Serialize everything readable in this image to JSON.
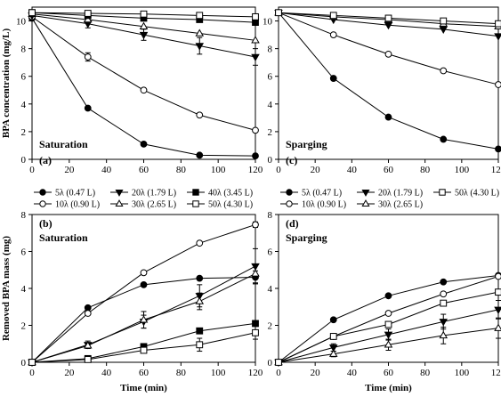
{
  "chart_data": [
    {
      "id": "a",
      "type": "line",
      "panel_label": "(a)",
      "annotation": "Saturation",
      "ylabel": "BPA concentration (mg/L)",
      "xlabel": "",
      "xlim": [
        0,
        120
      ],
      "ylim": [
        0,
        11
      ],
      "xticks": [
        0,
        20,
        40,
        60,
        80,
        100,
        120
      ],
      "yticks": [
        0,
        2,
        4,
        6,
        8,
        10
      ],
      "x": [
        0,
        30,
        60,
        90,
        120
      ],
      "series": [
        {
          "name": "5λ (0.47 L)",
          "marker": "filled-circle",
          "values": [
            10.2,
            3.7,
            1.1,
            0.3,
            0.25
          ],
          "err": [
            0,
            0,
            0,
            0,
            0
          ]
        },
        {
          "name": "10λ (0.90 L)",
          "marker": "open-circle",
          "values": [
            10.3,
            7.4,
            5.0,
            3.2,
            2.1
          ],
          "err": [
            0,
            0.3,
            0,
            0,
            0
          ]
        },
        {
          "name": "20λ (1.79 L)",
          "marker": "filled-triangle-down",
          "values": [
            10.4,
            9.8,
            9.0,
            8.2,
            7.4
          ],
          "err": [
            0,
            0.3,
            0.4,
            0.6,
            0.6
          ]
        },
        {
          "name": "30λ (2.65 L)",
          "marker": "open-triangle-up",
          "values": [
            10.5,
            10.1,
            9.6,
            9.1,
            8.6
          ],
          "err": [
            0,
            0,
            0,
            0,
            0
          ]
        },
        {
          "name": "40λ (3.45 L)",
          "marker": "filled-square",
          "values": [
            10.6,
            10.4,
            10.2,
            10.1,
            9.9
          ],
          "err": [
            0,
            0,
            0,
            0,
            0
          ]
        },
        {
          "name": "50λ (4.30 L)",
          "marker": "open-square",
          "values": [
            10.6,
            10.55,
            10.5,
            10.4,
            10.3
          ],
          "err": [
            0,
            0,
            0,
            0,
            0
          ]
        }
      ]
    },
    {
      "id": "c",
      "type": "line",
      "panel_label": "(c)",
      "annotation": "Sparging",
      "ylabel": "",
      "xlabel": "",
      "xlim": [
        0,
        120
      ],
      "ylim": [
        0,
        11
      ],
      "xticks": [
        0,
        20,
        40,
        60,
        80,
        100,
        120
      ],
      "yticks": [
        0,
        2,
        4,
        6,
        8,
        10
      ],
      "x": [
        0,
        30,
        60,
        90,
        120
      ],
      "series": [
        {
          "name": "5λ (0.47 L)",
          "marker": "filled-circle",
          "values": [
            10.6,
            5.85,
            3.05,
            1.45,
            0.75
          ],
          "err": [
            0,
            0,
            0,
            0,
            0
          ]
        },
        {
          "name": "10λ (0.90 L)",
          "marker": "open-circle",
          "values": [
            10.6,
            9.0,
            7.6,
            6.4,
            5.4
          ],
          "err": [
            0,
            0,
            0,
            0,
            0
          ]
        },
        {
          "name": "20λ (1.79 L)",
          "marker": "filled-triangle-down",
          "values": [
            10.6,
            10.1,
            9.7,
            9.4,
            8.9
          ],
          "err": [
            0,
            0,
            0,
            0,
            0
          ]
        },
        {
          "name": "30λ (2.65 L)",
          "marker": "open-triangle-up",
          "values": [
            10.6,
            10.3,
            10.1,
            9.8,
            9.6
          ],
          "err": [
            0,
            0,
            0,
            0,
            0
          ]
        },
        {
          "name": "50λ (4.30 L)",
          "marker": "open-square",
          "values": [
            10.6,
            10.4,
            10.2,
            10.0,
            9.8
          ],
          "err": [
            0,
            0,
            0,
            0,
            0
          ]
        }
      ]
    },
    {
      "id": "b",
      "type": "line",
      "panel_label": "(b)",
      "annotation": "Saturation",
      "ylabel": "Removed BPA mass (mg)",
      "xlabel": "Time (min)",
      "xlim": [
        0,
        120
      ],
      "ylim": [
        0,
        8
      ],
      "xticks": [
        0,
        20,
        40,
        60,
        80,
        100,
        120
      ],
      "yticks": [
        0,
        2,
        4,
        6,
        8
      ],
      "x": [
        0,
        30,
        60,
        90,
        120
      ],
      "series": [
        {
          "name": "5λ (0.47 L)",
          "marker": "filled-circle",
          "values": [
            0,
            2.95,
            4.2,
            4.55,
            4.6
          ],
          "err": [
            0,
            0,
            0,
            0,
            0.35
          ]
        },
        {
          "name": "10λ (0.90 L)",
          "marker": "open-circle",
          "values": [
            0,
            2.65,
            4.85,
            6.45,
            7.45
          ],
          "err": [
            0,
            0,
            0,
            0,
            0.15
          ]
        },
        {
          "name": "20λ (1.79 L)",
          "marker": "filled-triangle-down",
          "values": [
            0,
            0.95,
            2.2,
            3.6,
            5.2
          ],
          "err": [
            0,
            0.2,
            0.35,
            0.6,
            0.95
          ]
        },
        {
          "name": "30λ (2.65 L)",
          "marker": "open-triangle-up",
          "values": [
            0,
            0.9,
            2.3,
            3.3,
            4.8
          ],
          "err": [
            0,
            0.15,
            0.45,
            0.45,
            0.5
          ]
        },
        {
          "name": "40λ (3.45 L)",
          "marker": "filled-square",
          "values": [
            0,
            0.2,
            0.85,
            1.7,
            2.1
          ],
          "err": [
            0,
            0,
            0,
            0,
            0
          ]
        },
        {
          "name": "50λ (4.30 L)",
          "marker": "open-square",
          "values": [
            0,
            0.15,
            0.65,
            0.95,
            1.6
          ],
          "err": [
            0,
            0,
            0,
            0.35,
            0.35
          ]
        }
      ]
    },
    {
      "id": "d",
      "type": "line",
      "panel_label": "(d)",
      "annotation": "Sparging",
      "ylabel": "",
      "xlabel": "Time (min)",
      "xlim": [
        0,
        120
      ],
      "ylim": [
        0,
        8
      ],
      "xticks": [
        0,
        20,
        40,
        60,
        80,
        100,
        120
      ],
      "yticks": [
        0,
        2,
        4,
        6,
        8
      ],
      "x": [
        0,
        30,
        60,
        90,
        120
      ],
      "series": [
        {
          "name": "5λ (0.47 L)",
          "marker": "filled-circle",
          "values": [
            0,
            2.3,
            3.6,
            4.35,
            4.7
          ],
          "err": [
            0,
            0,
            0,
            0,
            0
          ]
        },
        {
          "name": "10λ (0.90 L)",
          "marker": "open-circle",
          "values": [
            0,
            1.4,
            2.65,
            3.7,
            4.65
          ],
          "err": [
            0,
            0,
            0,
            0,
            0
          ]
        },
        {
          "name": "20λ (1.79 L)",
          "marker": "filled-triangle-down",
          "values": [
            0,
            0.8,
            1.5,
            2.2,
            2.85
          ],
          "err": [
            0,
            0.2,
            0.3,
            0.4,
            0.5
          ]
        },
        {
          "name": "30λ (2.65 L)",
          "marker": "open-triangle-up",
          "values": [
            0,
            0.45,
            0.95,
            1.45,
            1.85
          ],
          "err": [
            0,
            0.15,
            0.3,
            0.45,
            0.55
          ]
        },
        {
          "name": "50λ (4.30 L)",
          "marker": "open-square",
          "values": [
            0,
            1.4,
            2.05,
            3.2,
            3.8
          ],
          "err": [
            0,
            0,
            0,
            0,
            0
          ]
        }
      ]
    }
  ],
  "legends": {
    "left": [
      [
        {
          "name": "5λ (0.47 L)",
          "marker": "filled-circle"
        },
        {
          "name": "20λ (1.79 L)",
          "marker": "filled-triangle-down"
        },
        {
          "name": "40λ (3.45 L)",
          "marker": "filled-square"
        }
      ],
      [
        {
          "name": "10λ (0.90 L)",
          "marker": "open-circle"
        },
        {
          "name": "30λ (2.65 L)",
          "marker": "open-triangle-up"
        },
        {
          "name": "50λ (4.30 L)",
          "marker": "open-square"
        }
      ]
    ],
    "right": [
      [
        {
          "name": "5λ (0.47 L)",
          "marker": "filled-circle"
        },
        {
          "name": "20λ (1.79 L)",
          "marker": "filled-triangle-down"
        },
        {
          "name": "50λ (4.30 L)",
          "marker": "open-square"
        }
      ],
      [
        {
          "name": "10λ (0.90 L)",
          "marker": "open-circle"
        },
        {
          "name": "30λ (2.65 L)",
          "marker": "open-triangle-up"
        }
      ]
    ]
  }
}
